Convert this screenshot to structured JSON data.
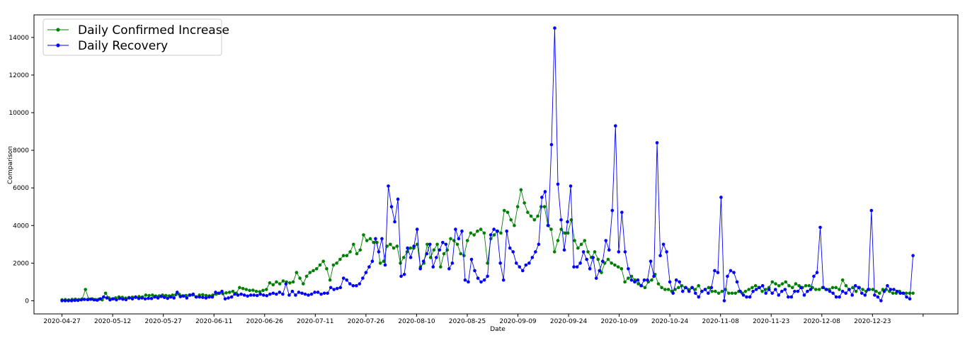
{
  "chart_data": {
    "type": "line",
    "xlabel": "Date",
    "ylabel": "Comparison",
    "ylim": [
      -700,
      15200
    ],
    "yticks": [
      0,
      2000,
      4000,
      6000,
      8000,
      10000,
      12000,
      14000
    ],
    "xticks": [
      "2020-04-27",
      "2020-05-12",
      "2020-05-27",
      "2020-06-11",
      "2020-06-26",
      "2020-07-11",
      "2020-07-26",
      "2020-08-10",
      "2020-08-25",
      "2020-09-09",
      "2020-09-24",
      "2020-10-09",
      "2020-10-24",
      "2020-11-08",
      "2020-11-23",
      "2020-12-08",
      "2020-12-23"
    ],
    "x_start": "2020-04-27",
    "x_end": "2021-01-04",
    "grid": false,
    "legend_position": "top-left",
    "series": [
      {
        "name": "Daily Confirmed Increase",
        "color": "#008000",
        "values": [
          50,
          60,
          40,
          70,
          80,
          60,
          90,
          600,
          80,
          100,
          60,
          80,
          50,
          400,
          150,
          100,
          150,
          200,
          180,
          140,
          170,
          190,
          180,
          220,
          200,
          300,
          280,
          300,
          250,
          260,
          300,
          280,
          260,
          300,
          320,
          340,
          260,
          280,
          300,
          310,
          200,
          300,
          320,
          280,
          260,
          300,
          350,
          400,
          380,
          420,
          450,
          500,
          400,
          700,
          650,
          600,
          550,
          560,
          500,
          480,
          550,
          600,
          950,
          850,
          1000,
          900,
          1050,
          1000,
          950,
          1000,
          1500,
          1200,
          900,
          1300,
          1500,
          1600,
          1700,
          1900,
          2100,
          1700,
          1100,
          1900,
          2000,
          2200,
          2400,
          2400,
          2600,
          3000,
          2500,
          2700,
          3500,
          3200,
          3300,
          3100,
          3100,
          2000,
          2100,
          2900,
          3000,
          2800,
          2900,
          2000,
          2300,
          2600,
          2800,
          2800,
          3000,
          1800,
          2000,
          3000,
          2300,
          2700,
          3000,
          1800,
          2500,
          2700,
          3300,
          3200,
          3000,
          2500,
          2400,
          3200,
          3600,
          3500,
          3700,
          3800,
          3600,
          2000,
          3300,
          3500,
          3700,
          3600,
          4800,
          4700,
          4300,
          4000,
          5000,
          5900,
          5200,
          4700,
          4500,
          4300,
          4500,
          5000,
          5000,
          4000,
          3800,
          2600,
          3200,
          3800,
          3600,
          3600,
          4300,
          3200,
          2800,
          3000,
          3200,
          2600,
          2300,
          2600,
          2200,
          1500,
          2000,
          2200,
          2000,
          1900,
          1800,
          1700,
          1000,
          1200,
          1300,
          1100,
          900,
          800,
          700,
          1000,
          1100,
          1400,
          900,
          700,
          600,
          600,
          500,
          600,
          700,
          800,
          700,
          600,
          700,
          600,
          800,
          500,
          600,
          700,
          500,
          500,
          400,
          500,
          600,
          400,
          400,
          400,
          500,
          400,
          500,
          600,
          700,
          800,
          700,
          500,
          600,
          700,
          1000,
          900,
          800,
          900,
          1000,
          800,
          700,
          900,
          800,
          700,
          800,
          800,
          700,
          600,
          600,
          700,
          600,
          600,
          700,
          700,
          600,
          1100,
          800,
          600,
          700,
          500,
          700,
          600,
          500,
          600,
          600,
          500,
          400,
          600,
          600,
          500,
          400,
          400,
          500,
          400,
          400,
          400,
          400
        ],
        "marker": "dot"
      },
      {
        "name": "Daily Recovery",
        "color": "#0000ff",
        "values": [
          0,
          0,
          0,
          0,
          20,
          20,
          50,
          70,
          60,
          80,
          50,
          30,
          100,
          200,
          150,
          50,
          100,
          50,
          120,
          80,
          60,
          150,
          100,
          200,
          120,
          150,
          100,
          130,
          120,
          200,
          150,
          230,
          180,
          130,
          200,
          150,
          450,
          220,
          250,
          150,
          300,
          350,
          200,
          200,
          180,
          150,
          200,
          200,
          450,
          400,
          500,
          100,
          150,
          200,
          350,
          300,
          350,
          300,
          250,
          300,
          300,
          280,
          350,
          300,
          270,
          350,
          400,
          350,
          450,
          350,
          900,
          300,
          500,
          300,
          450,
          400,
          350,
          300,
          350,
          450,
          450,
          350,
          400,
          400,
          700,
          600,
          650,
          700,
          1200,
          1100,
          900,
          800,
          800,
          900,
          1200,
          1500,
          1800,
          2100,
          3300,
          2600,
          3300,
          1900,
          6100,
          5000,
          4200,
          5400,
          1300,
          1400,
          2800,
          2300,
          2900,
          3800,
          1700,
          2100,
          2500,
          3000,
          1800,
          2300,
          2700,
          3100,
          3000,
          1700,
          2000,
          3800,
          3300,
          3700,
          1100,
          1000,
          2200,
          1600,
          1200,
          1000,
          1100,
          1300,
          3500,
          3800,
          3700,
          2000,
          1100,
          3700,
          2800,
          2600,
          2000,
          1800,
          1600,
          1900,
          2000,
          2300,
          2600,
          3000,
          5500,
          5800,
          4000,
          8300,
          14500,
          6200,
          4300,
          2700,
          4200,
          6100,
          1800,
          1800,
          2000,
          2600,
          2200,
          1700,
          2300,
          1200,
          1600,
          2100,
          3200,
          2700,
          4800,
          9300,
          2600,
          4700,
          2600,
          1700,
          1100,
          1000,
          1100,
          800,
          1100,
          1100,
          2100,
          1300,
          8400,
          2400,
          3000,
          2600,
          1000,
          400,
          1100,
          1000,
          500,
          700,
          500,
          700,
          400,
          200,
          500,
          600,
          400,
          700,
          1600,
          1500,
          5500,
          0,
          1300,
          1600,
          1500,
          1000,
          500,
          300,
          200,
          200,
          500,
          600,
          700,
          800,
          400,
          600,
          400,
          600,
          300,
          500,
          600,
          200,
          200,
          500,
          500,
          700,
          300,
          500,
          600,
          1300,
          1500,
          3900,
          700,
          600,
          500,
          400,
          200,
          200,
          500,
          400,
          600,
          300,
          800,
          700,
          400,
          300,
          600,
          4800,
          300,
          200,
          0,
          500,
          800,
          600,
          600,
          500,
          400,
          400,
          200,
          100,
          2400
        ],
        "marker": "dot"
      }
    ]
  }
}
